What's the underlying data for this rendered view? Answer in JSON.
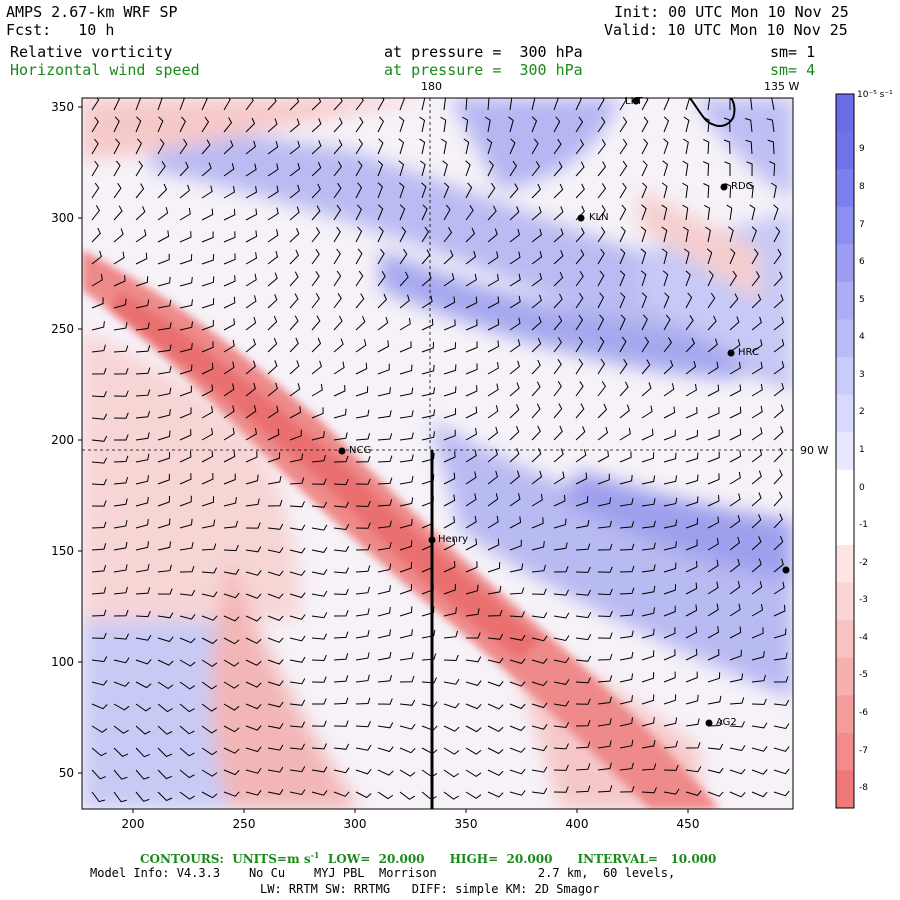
{
  "header": {
    "title": "AMPS 2.67-km WRF SP",
    "forecast": "Fcst:   10 h",
    "init": "Init: 00 UTC Mon 10 Nov 25",
    "valid": "Valid: 10 UTC Mon 10 Nov 25",
    "field1": {
      "name": "Relative vorticity",
      "pressure": "at pressure =  300 hPa",
      "sm": "sm= 1"
    },
    "field2": {
      "name": "Horizontal wind speed",
      "pressure": "at pressure =  300 hPa",
      "sm": "sm= 4"
    }
  },
  "map": {
    "x_ticks": [
      "200",
      "250",
      "300",
      "350",
      "400",
      "450"
    ],
    "y_ticks": [
      "350",
      "300",
      "250",
      "200",
      "150",
      "100",
      "50"
    ],
    "meridian_top": "180",
    "meridian_top_right": "135 W",
    "meridian_right": "90 W",
    "stations": [
      "LKT",
      "RDG",
      "KLN",
      "HRC",
      "NCG",
      "Henry",
      "AG2"
    ]
  },
  "colorbar": {
    "unit": "10⁻⁵ s⁻¹",
    "labels": [
      "9",
      "8",
      "7",
      "6",
      "5",
      "4",
      "3",
      "2",
      "1",
      "0",
      "-1",
      "-2",
      "-3",
      "-4",
      "-5",
      "-6",
      "-7",
      "-8"
    ],
    "colors": [
      "#6f72e8",
      "#7d80ec",
      "#8c8ff0",
      "#9b9ef3",
      "#abadf5",
      "#babcf8",
      "#c9cbfa",
      "#d8d9fc",
      "#e7e8fe",
      "#ffffff",
      "#ffffff",
      "#fde5e5",
      "#fbd4d4",
      "#f9c2c2",
      "#f7b0b0",
      "#f49d9d",
      "#f28b8b",
      "#ef7878"
    ]
  },
  "footer": {
    "contours_prefix": "CONTOURS:  UNITS=m s",
    "contours_exp": "-1",
    "contours_rest": "  LOW=  20.000      HIGH=  20.000      INTERVAL=   10.000",
    "model_info": "Model Info: V4.3.3    No Cu    MYJ PBL  Morrison              2.7 km,  60 levels,",
    "physics": "LW: RRTM SW: RRTMG   DIFF: simple KM: 2D Smagor"
  }
}
